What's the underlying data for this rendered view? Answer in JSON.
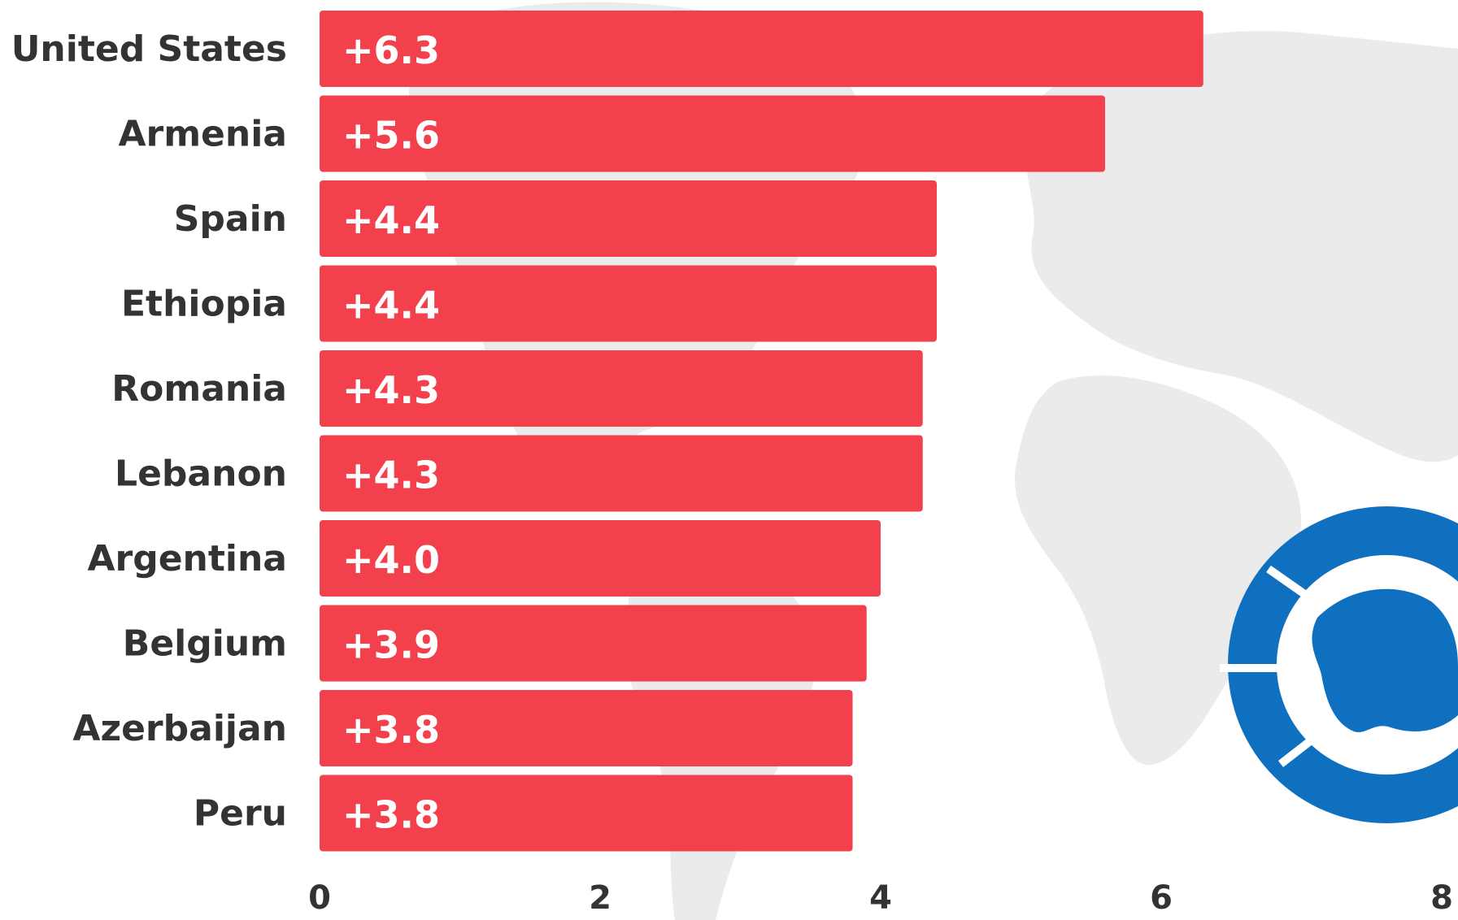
{
  "colors": {
    "bar": "#f23a47",
    "map": "#ebebeb",
    "logo": "#1070c0",
    "label": "#333333"
  },
  "logo": {
    "icon": "globe-gear-logo"
  },
  "chart_data": {
    "type": "bar",
    "orientation": "horizontal",
    "title": "",
    "xlabel": "",
    "ylabel": "",
    "categories": [
      "United States",
      "Armenia",
      "Spain",
      "Ethiopia",
      "Romania",
      "Lebanon",
      "Argentina",
      "Belgium",
      "Azerbaijan",
      "Peru"
    ],
    "values": [
      6.3,
      5.6,
      4.4,
      4.4,
      4.3,
      4.3,
      4.0,
      3.9,
      3.8,
      3.8
    ],
    "value_labels": [
      "+6.3",
      "+5.6",
      "+4.4",
      "+4.4",
      "+4.3",
      "+4.3",
      "+4.0",
      "+3.9",
      "+3.8",
      "+3.8"
    ],
    "xlim": [
      0,
      8
    ],
    "xticks": [
      0,
      2,
      4,
      6,
      8
    ],
    "xtick_labels": [
      "0",
      "2",
      "4",
      "6",
      "8"
    ],
    "grid": false,
    "legend": "none"
  }
}
